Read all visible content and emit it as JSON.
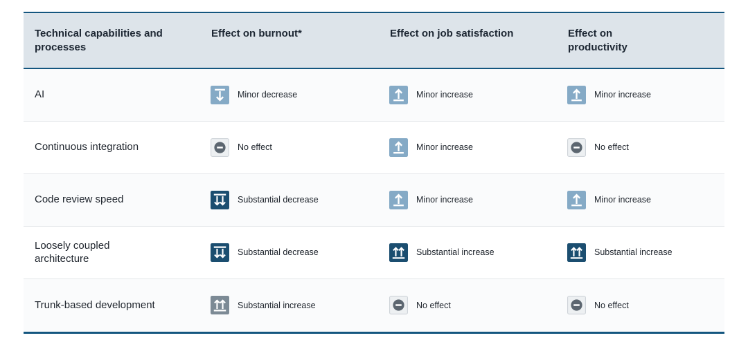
{
  "chart_data": {
    "type": "table",
    "columns": [
      "Technical capabilities and processes",
      "Effect on burnout*",
      "Effect on job satisfaction",
      "Effect on productivity"
    ],
    "rows": [
      [
        "AI",
        "Minor decrease",
        "Minor increase",
        "Minor increase"
      ],
      [
        "Continuous integration",
        "No effect",
        "Minor increase",
        "No effect"
      ],
      [
        "Code review speed",
        "Substantial decrease",
        "Minor increase",
        "Minor increase"
      ],
      [
        "Loosely coupled architecture",
        "Substantial decrease",
        "Substantial increase",
        "Substantial increase"
      ],
      [
        "Trunk-based development",
        "Substantial increase",
        "No effect",
        "No effect"
      ]
    ]
  },
  "table": {
    "headers": {
      "capability": "Technical capabilities and processes",
      "burnout": "Effect on burnout*",
      "satisfaction": "Effect on job satisfaction",
      "productivity": "Effect on productivity"
    },
    "rows": [
      {
        "capability": "AI",
        "effects": [
          {
            "column": "burnout",
            "icon": "minor-decrease",
            "tone": "light-blue",
            "label": "Minor decrease"
          },
          {
            "column": "job-satisfaction",
            "icon": "minor-increase",
            "tone": "light-blue",
            "label": "Minor increase"
          },
          {
            "column": "productivity",
            "icon": "minor-increase",
            "tone": "light-blue",
            "label": "Minor increase"
          }
        ]
      },
      {
        "capability": "Continuous integration",
        "effects": [
          {
            "column": "burnout",
            "icon": "no-effect",
            "tone": "neutral",
            "label": "No effect"
          },
          {
            "column": "job-satisfaction",
            "icon": "minor-increase",
            "tone": "light-blue",
            "label": "Minor increase"
          },
          {
            "column": "productivity",
            "icon": "no-effect",
            "tone": "neutral",
            "label": "No effect"
          }
        ]
      },
      {
        "capability": "Code review speed",
        "effects": [
          {
            "column": "burnout",
            "icon": "substantial-decrease",
            "tone": "dark-blue",
            "label": "Substantial decrease"
          },
          {
            "column": "job-satisfaction",
            "icon": "minor-increase",
            "tone": "light-blue",
            "label": "Minor increase"
          },
          {
            "column": "productivity",
            "icon": "minor-increase",
            "tone": "light-blue",
            "label": "Minor increase"
          }
        ]
      },
      {
        "capability": "Loosely coupled architecture",
        "effects": [
          {
            "column": "burnout",
            "icon": "substantial-decrease",
            "tone": "dark-blue",
            "label": "Substantial decrease"
          },
          {
            "column": "job-satisfaction",
            "icon": "substantial-increase",
            "tone": "dark-blue",
            "label": "Substantial increase"
          },
          {
            "column": "productivity",
            "icon": "substantial-increase",
            "tone": "dark-blue",
            "label": "Substantial increase"
          }
        ]
      },
      {
        "capability": "Trunk-based development",
        "effects": [
          {
            "column": "burnout",
            "icon": "substantial-increase",
            "tone": "gray",
            "label": "Substantial increase"
          },
          {
            "column": "job-satisfaction",
            "icon": "no-effect",
            "tone": "neutral",
            "label": "No effect"
          },
          {
            "column": "productivity",
            "icon": "no-effect",
            "tone": "neutral",
            "label": "No effect"
          }
        ]
      }
    ]
  },
  "colors": {
    "accent_line": "#14567f",
    "header_bg": "#dde4ea",
    "dark_blue": "#1b4e70",
    "light_blue": "#85aac6",
    "gray": "#7c8a95",
    "no_effect_bg": "#edf0f2",
    "no_effect_border": "#cfd4d9",
    "no_effect_circle": "#5c6670"
  }
}
